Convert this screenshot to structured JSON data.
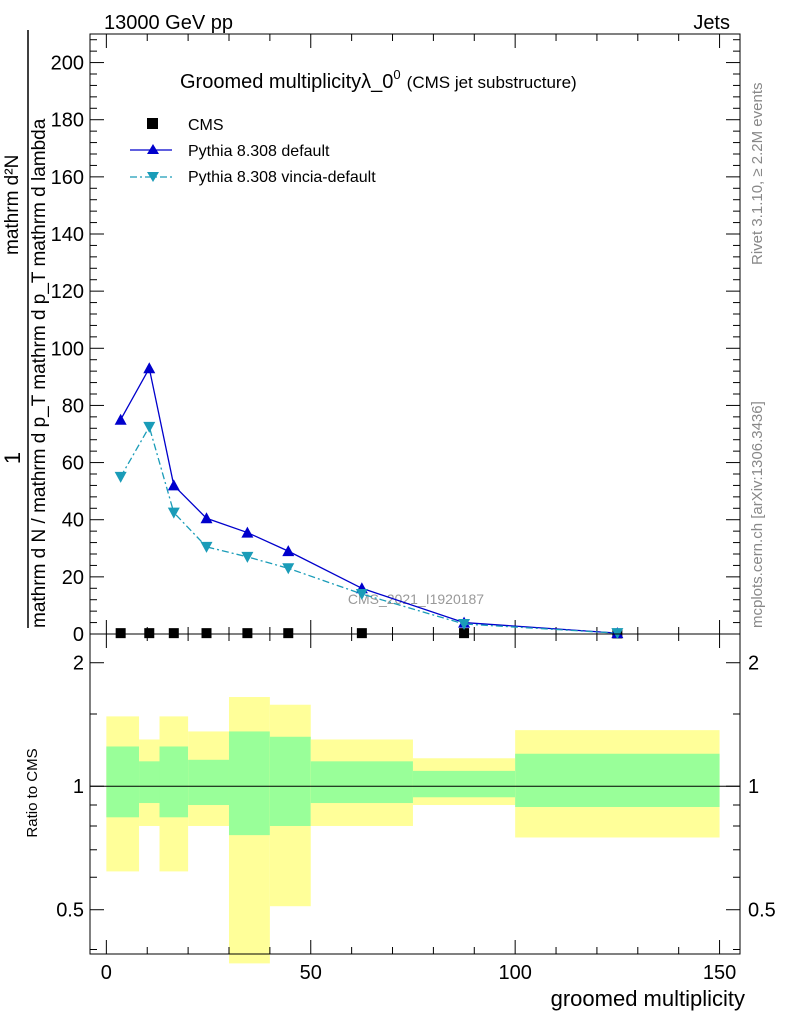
{
  "header": {
    "left": "13000 GeV pp",
    "right": "Jets"
  },
  "title": {
    "main": "Groomed multiplicityλ_0",
    "sup": "0",
    "sub": "(CMS jet substructure)"
  },
  "side_labels": {
    "rivet": "Rivet 3.1.10, ≥ 2.2M events",
    "mcplots": "mcplots.cern.ch [arXiv:1306.3436]"
  },
  "watermark": "CMS_2021_I1920187",
  "colors": {
    "cms": "#000000",
    "default": "#0000cc",
    "vincia": "#1a9cb8",
    "band_inner": "#99ff99",
    "band_outer": "#ffff99"
  },
  "chart_data": [
    {
      "type": "line",
      "title": "Groomed multiplicityλ_0^0 (CMS jet substructure)",
      "xlabel": "groomed multiplicity",
      "ylabel": {
        "numerator": "1",
        "denominator": "mathrm d N / mathrm d p_T mathrm d p_T mathrm d lambda",
        "top": "mathrm d²N"
      },
      "xlim": [
        -4,
        155
      ],
      "ylim": [
        0,
        210
      ],
      "x_ticks": [
        "0",
        "50",
        "100",
        "150"
      ],
      "y_ticks": [
        "0",
        "20",
        "40",
        "60",
        "80",
        "100",
        "120",
        "140",
        "160",
        "180",
        "200"
      ],
      "legend_position": "top-left",
      "series": [
        {
          "name": "CMS",
          "marker": "square",
          "x": [
            3.5,
            10.5,
            16.5,
            24.5,
            34.5,
            44.5,
            62.5,
            87.5,
            125
          ],
          "y": [
            0.3,
            0.3,
            0.3,
            0.3,
            0.3,
            0.3,
            0.3,
            0.3,
            0.2
          ]
        },
        {
          "name": "Pythia 8.308 default",
          "marker": "triangle-up",
          "line": "solid",
          "x": [
            3.5,
            10.5,
            16.5,
            24.5,
            34.5,
            44.5,
            62.5,
            87.5,
            125
          ],
          "y": [
            75,
            93,
            52,
            40.5,
            35.5,
            29,
            16,
            4,
            0.3
          ]
        },
        {
          "name": "Pythia 8.308 vincia-default",
          "marker": "triangle-down",
          "line": "dashdot",
          "x": [
            3.5,
            10.5,
            16.5,
            24.5,
            34.5,
            44.5,
            62.5,
            87.5,
            125
          ],
          "y": [
            55,
            72.5,
            42.5,
            30.5,
            27,
            23,
            14,
            3.5,
            0.3
          ]
        }
      ]
    },
    {
      "type": "area",
      "ylabel": "Ratio to CMS",
      "xlabel": "groomed multiplicity",
      "xlim": [
        -4,
        155
      ],
      "ylim": [
        0.39,
        2.35
      ],
      "log_y": true,
      "y_ticks": [
        "0.5",
        "1",
        "2"
      ],
      "x_ticks": [
        "0",
        "50",
        "100",
        "150"
      ],
      "reference_line": 1,
      "bins": [
        {
          "x_low": 0,
          "x_high": 8,
          "inner": [
            0.84,
            1.25
          ],
          "outer": [
            0.62,
            1.48
          ]
        },
        {
          "x_low": 8,
          "x_high": 13,
          "inner": [
            0.91,
            1.15
          ],
          "outer": [
            0.8,
            1.3
          ]
        },
        {
          "x_low": 13,
          "x_high": 20,
          "inner": [
            0.84,
            1.25
          ],
          "outer": [
            0.62,
            1.48
          ]
        },
        {
          "x_low": 20,
          "x_high": 30,
          "inner": [
            0.9,
            1.16
          ],
          "outer": [
            0.8,
            1.36
          ]
        },
        {
          "x_low": 30,
          "x_high": 40,
          "inner": [
            0.76,
            1.36
          ],
          "outer": [
            0.37,
            1.65
          ]
        },
        {
          "x_low": 40,
          "x_high": 50,
          "inner": [
            0.8,
            1.32
          ],
          "outer": [
            0.51,
            1.58
          ]
        },
        {
          "x_low": 50,
          "x_high": 75,
          "inner": [
            0.91,
            1.15
          ],
          "outer": [
            0.8,
            1.3
          ]
        },
        {
          "x_low": 75,
          "x_high": 100,
          "inner": [
            0.94,
            1.09
          ],
          "outer": [
            0.9,
            1.17
          ]
        },
        {
          "x_low": 100,
          "x_high": 150,
          "inner": [
            0.89,
            1.2
          ],
          "outer": [
            0.75,
            1.37
          ]
        }
      ]
    }
  ]
}
